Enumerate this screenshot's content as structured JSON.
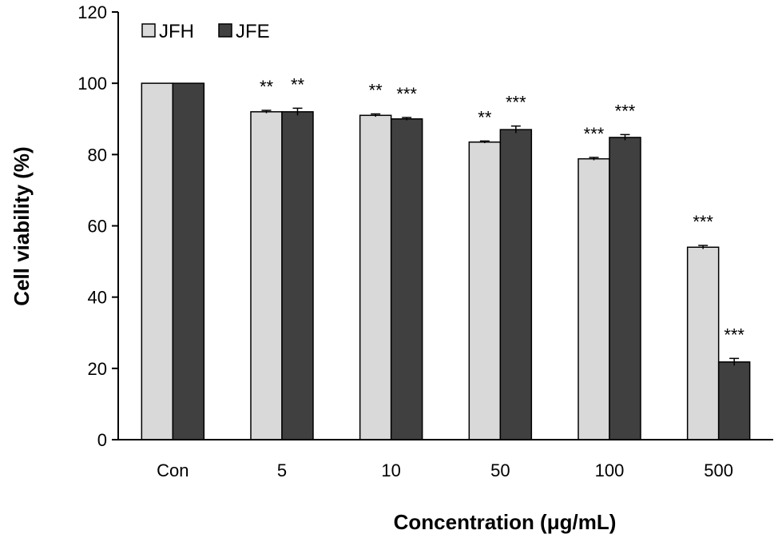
{
  "chart_data": {
    "type": "bar",
    "xlabel": "Concentration (μg/mL)",
    "ylabel": "Cell viability (%)",
    "ylim": [
      0,
      120
    ],
    "yticks": [
      0,
      20,
      40,
      60,
      80,
      100,
      120
    ],
    "categories": [
      "Con",
      "5",
      "10",
      "50",
      "100",
      "500"
    ],
    "legend_position": "top-left",
    "grid": false,
    "series": [
      {
        "name": "JFH",
        "color": "#d9d9d9",
        "values": [
          100,
          92,
          91,
          83.5,
          78.8,
          54
        ],
        "errors": [
          0,
          0.4,
          0.4,
          0.3,
          0.4,
          0.5
        ],
        "significance": [
          "",
          "**",
          "**",
          "**",
          "***",
          "***"
        ]
      },
      {
        "name": "JFE",
        "color": "#404040",
        "values": [
          100,
          92,
          90,
          87,
          84.8,
          21.8
        ],
        "errors": [
          0,
          1.0,
          0.4,
          1.0,
          0.8,
          1.0
        ],
        "significance": [
          "",
          "**",
          "***",
          "***",
          "***",
          "***"
        ]
      }
    ]
  }
}
